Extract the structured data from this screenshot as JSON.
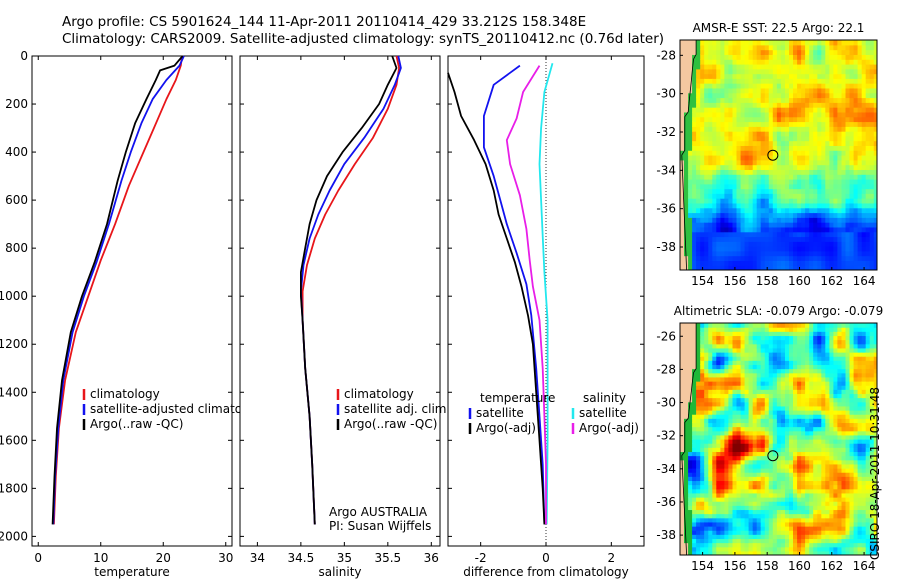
{
  "header": {
    "line1": "Argo profile: CS 5901624_144 11-Apr-2011 20110414_429 33.212S 158.348E",
    "line2": "Climatology: CARS2009. Satellite-adjusted climatology: synTS_20110412.nc (0.76d later)"
  },
  "side_label": "CSIRO 18-Apr-2011 10:31:48",
  "colors": {
    "red": "#e8161a",
    "blue": "#1212ef",
    "black": "#000000",
    "cyan": "#22e8ee",
    "magenta": "#e81ee8",
    "land": "#f4c8a0"
  },
  "chart_data": [
    {
      "type": "line",
      "name": "temperature-panel",
      "xlabel": "temperature",
      "ylabel": "",
      "xlim": [
        -1,
        31
      ],
      "ylim": [
        2040,
        0
      ],
      "xticks": [
        0,
        10,
        20,
        30
      ],
      "yticks": [
        0,
        200,
        400,
        600,
        800,
        1000,
        1200,
        1400,
        1600,
        1800,
        2000
      ],
      "legend": {
        "placement": "lower-middle",
        "entries": [
          "climatology",
          "satellite-adjusted climatology",
          "Argo(..raw -QC)"
        ]
      },
      "series": [
        {
          "name": "climatology",
          "color": "red",
          "points": [
            [
              23,
              0
            ],
            [
              22.8,
              40
            ],
            [
              22,
              100
            ],
            [
              20.5,
              180
            ],
            [
              18.5,
              300
            ],
            [
              16.5,
              420
            ],
            [
              14.5,
              540
            ],
            [
              12.3,
              700
            ],
            [
              10,
              850
            ],
            [
              8,
              1000
            ],
            [
              6,
              1150
            ],
            [
              4.3,
              1350
            ],
            [
              3.3,
              1550
            ],
            [
              2.8,
              1750
            ],
            [
              2.5,
              1950
            ]
          ]
        },
        {
          "name": "satellite-adjusted climatology",
          "color": "blue",
          "points": [
            [
              23.3,
              0
            ],
            [
              22.6,
              40
            ],
            [
              20.5,
              100
            ],
            [
              18.3,
              180
            ],
            [
              16.5,
              280
            ],
            [
              14.8,
              400
            ],
            [
              13.3,
              520
            ],
            [
              11.3,
              700
            ],
            [
              9.3,
              860
            ],
            [
              7.3,
              1000
            ],
            [
              5.5,
              1150
            ],
            [
              4,
              1350
            ],
            [
              3.2,
              1550
            ],
            [
              2.7,
              1750
            ],
            [
              2.4,
              1950
            ]
          ]
        },
        {
          "name": "Argo(..raw -QC)",
          "color": "black",
          "points": [
            [
              23.1,
              0
            ],
            [
              21.8,
              40
            ],
            [
              19.5,
              60
            ],
            [
              18.8,
              100
            ],
            [
              17.3,
              180
            ],
            [
              15.5,
              280
            ],
            [
              14,
              400
            ],
            [
              12.7,
              520
            ],
            [
              11,
              700
            ],
            [
              9,
              860
            ],
            [
              7,
              1000
            ],
            [
              5.2,
              1150
            ],
            [
              3.8,
              1350
            ],
            [
              3,
              1550
            ],
            [
              2.6,
              1750
            ],
            [
              2.3,
              1950
            ]
          ]
        }
      ]
    },
    {
      "type": "line",
      "name": "salinity-panel",
      "xlabel": "salinity",
      "ylabel": "",
      "xlim": [
        33.8,
        36.1
      ],
      "ylim": [
        2040,
        0
      ],
      "xticks": [
        34,
        34.5,
        35,
        35.5,
        36
      ],
      "yticks": [
        0,
        200,
        400,
        600,
        800,
        1000,
        1200,
        1400,
        1600,
        1800,
        2000
      ],
      "legend": {
        "placement": "lower-middle",
        "entries": [
          "climatology",
          "satellite adj. clim.",
          "Argo(..raw -QC)"
        ]
      },
      "annotation": [
        "Argo AUSTRALIA",
        "PI: Susan Wijffels"
      ],
      "series": [
        {
          "name": "climatology",
          "color": "red",
          "points": [
            [
              35.6,
              0
            ],
            [
              35.63,
              50
            ],
            [
              35.6,
              120
            ],
            [
              35.5,
              220
            ],
            [
              35.33,
              340
            ],
            [
              35.12,
              450
            ],
            [
              34.93,
              560
            ],
            [
              34.78,
              660
            ],
            [
              34.66,
              760
            ],
            [
              34.57,
              870
            ],
            [
              34.52,
              980
            ],
            [
              34.52,
              1100
            ],
            [
              34.55,
              1300
            ],
            [
              34.6,
              1500
            ],
            [
              34.63,
              1700
            ],
            [
              34.66,
              1950
            ]
          ]
        },
        {
          "name": "satellite adj. clim.",
          "color": "blue",
          "points": [
            [
              35.62,
              0
            ],
            [
              35.65,
              50
            ],
            [
              35.58,
              120
            ],
            [
              35.45,
              220
            ],
            [
              35.23,
              340
            ],
            [
              35.0,
              450
            ],
            [
              34.83,
              560
            ],
            [
              34.7,
              660
            ],
            [
              34.6,
              760
            ],
            [
              34.53,
              870
            ],
            [
              34.5,
              980
            ],
            [
              34.52,
              1100
            ],
            [
              34.55,
              1300
            ],
            [
              34.6,
              1500
            ],
            [
              34.63,
              1700
            ],
            [
              34.66,
              1950
            ]
          ]
        },
        {
          "name": "Argo(..raw -QC)",
          "color": "black",
          "points": [
            [
              35.55,
              0
            ],
            [
              35.6,
              50
            ],
            [
              35.5,
              120
            ],
            [
              35.4,
              200
            ],
            [
              35.2,
              300
            ],
            [
              34.98,
              400
            ],
            [
              34.8,
              500
            ],
            [
              34.68,
              600
            ],
            [
              34.6,
              700
            ],
            [
              34.55,
              800
            ],
            [
              34.5,
              900
            ],
            [
              34.5,
              1000
            ],
            [
              34.52,
              1100
            ],
            [
              34.55,
              1300
            ],
            [
              34.6,
              1500
            ],
            [
              34.63,
              1700
            ],
            [
              34.66,
              1950
            ]
          ]
        }
      ]
    },
    {
      "type": "line",
      "name": "difference-panel",
      "xlabel": "difference from climatology",
      "ylabel": "",
      "xlim": [
        -3,
        3
      ],
      "ylim": [
        2040,
        0
      ],
      "xticks": [
        -2,
        0,
        2
      ],
      "yticks": [
        0,
        200,
        400,
        600,
        800,
        1000,
        1200,
        1400,
        1600,
        1800,
        2000
      ],
      "legend": {
        "placement": "lower-middle",
        "temperature_heading": "temperature",
        "salinity_heading": "salinity",
        "entries": [
          "satellite",
          "Argo(-adj)",
          "satellite",
          "Argo(-adj)"
        ]
      },
      "series": [
        {
          "name": "temperature satellite",
          "color": "blue",
          "points": [
            [
              -0.8,
              40
            ],
            [
              -1.6,
              120
            ],
            [
              -1.9,
              250
            ],
            [
              -1.9,
              380
            ],
            [
              -1.6,
              500
            ],
            [
              -1.4,
              600
            ],
            [
              -1.2,
              700
            ],
            [
              -0.9,
              820
            ],
            [
              -0.6,
              950
            ],
            [
              -0.45,
              1080
            ],
            [
              -0.3,
              1300
            ],
            [
              -0.2,
              1500
            ],
            [
              -0.1,
              1700
            ],
            [
              -0.05,
              1950
            ]
          ]
        },
        {
          "name": "temperature Argo(-adj)",
          "color": "black",
          "points": [
            [
              -3,
              70
            ],
            [
              -2.8,
              150
            ],
            [
              -2.6,
              250
            ],
            [
              -2.2,
              350
            ],
            [
              -1.85,
              450
            ],
            [
              -1.6,
              560
            ],
            [
              -1.45,
              660
            ],
            [
              -1.2,
              760
            ],
            [
              -0.95,
              860
            ],
            [
              -0.75,
              960
            ],
            [
              -0.55,
              1080
            ],
            [
              -0.4,
              1200
            ],
            [
              -0.3,
              1400
            ],
            [
              -0.2,
              1600
            ],
            [
              -0.1,
              1800
            ],
            [
              -0.05,
              1950
            ]
          ]
        },
        {
          "name": "salinity satellite",
          "color": "cyan",
          "points": [
            [
              0.2,
              30
            ],
            [
              -0.05,
              150
            ],
            [
              -0.15,
              300
            ],
            [
              -0.2,
              450
            ],
            [
              -0.15,
              600
            ],
            [
              -0.1,
              750
            ],
            [
              -0.05,
              900
            ],
            [
              0.05,
              1100
            ],
            [
              0.05,
              1300
            ],
            [
              0.05,
              1600
            ],
            [
              0.02,
              1950
            ]
          ]
        },
        {
          "name": "salinity Argo(-adj)",
          "color": "magenta",
          "points": [
            [
              -0.2,
              40
            ],
            [
              -0.7,
              150
            ],
            [
              -0.9,
              260
            ],
            [
              -1.2,
              350
            ],
            [
              -1.1,
              450
            ],
            [
              -0.8,
              580
            ],
            [
              -0.6,
              720
            ],
            [
              -0.5,
              850
            ],
            [
              -0.4,
              960
            ],
            [
              -0.2,
              1100
            ],
            [
              -0.1,
              1300
            ],
            [
              -0.05,
              1500
            ],
            [
              0.0,
              1700
            ],
            [
              0.0,
              1950
            ]
          ]
        }
      ]
    },
    {
      "type": "heatmap",
      "name": "sst-map",
      "title": "AMSR-E SST: 22.5 Argo: 22.1",
      "xlim": [
        152.6,
        164.8
      ],
      "ylim": [
        -39.2,
        -27.2
      ],
      "xticks": [
        154,
        156,
        158,
        160,
        162,
        164
      ],
      "yticks": [
        -28,
        -30,
        -32,
        -34,
        -36,
        -38
      ],
      "profile_location": [
        158.35,
        -33.21
      ]
    },
    {
      "type": "heatmap",
      "name": "sla-map",
      "title": "Altimetric SLA: -0.079 Argo: -0.079",
      "xlim": [
        152.6,
        164.8
      ],
      "ylim": [
        -39.2,
        -25.2
      ],
      "xticks": [
        154,
        156,
        158,
        160,
        162,
        164
      ],
      "yticks": [
        -26,
        -28,
        -30,
        -32,
        -34,
        -36,
        -38
      ],
      "profile_location": [
        158.35,
        -33.21
      ]
    }
  ]
}
